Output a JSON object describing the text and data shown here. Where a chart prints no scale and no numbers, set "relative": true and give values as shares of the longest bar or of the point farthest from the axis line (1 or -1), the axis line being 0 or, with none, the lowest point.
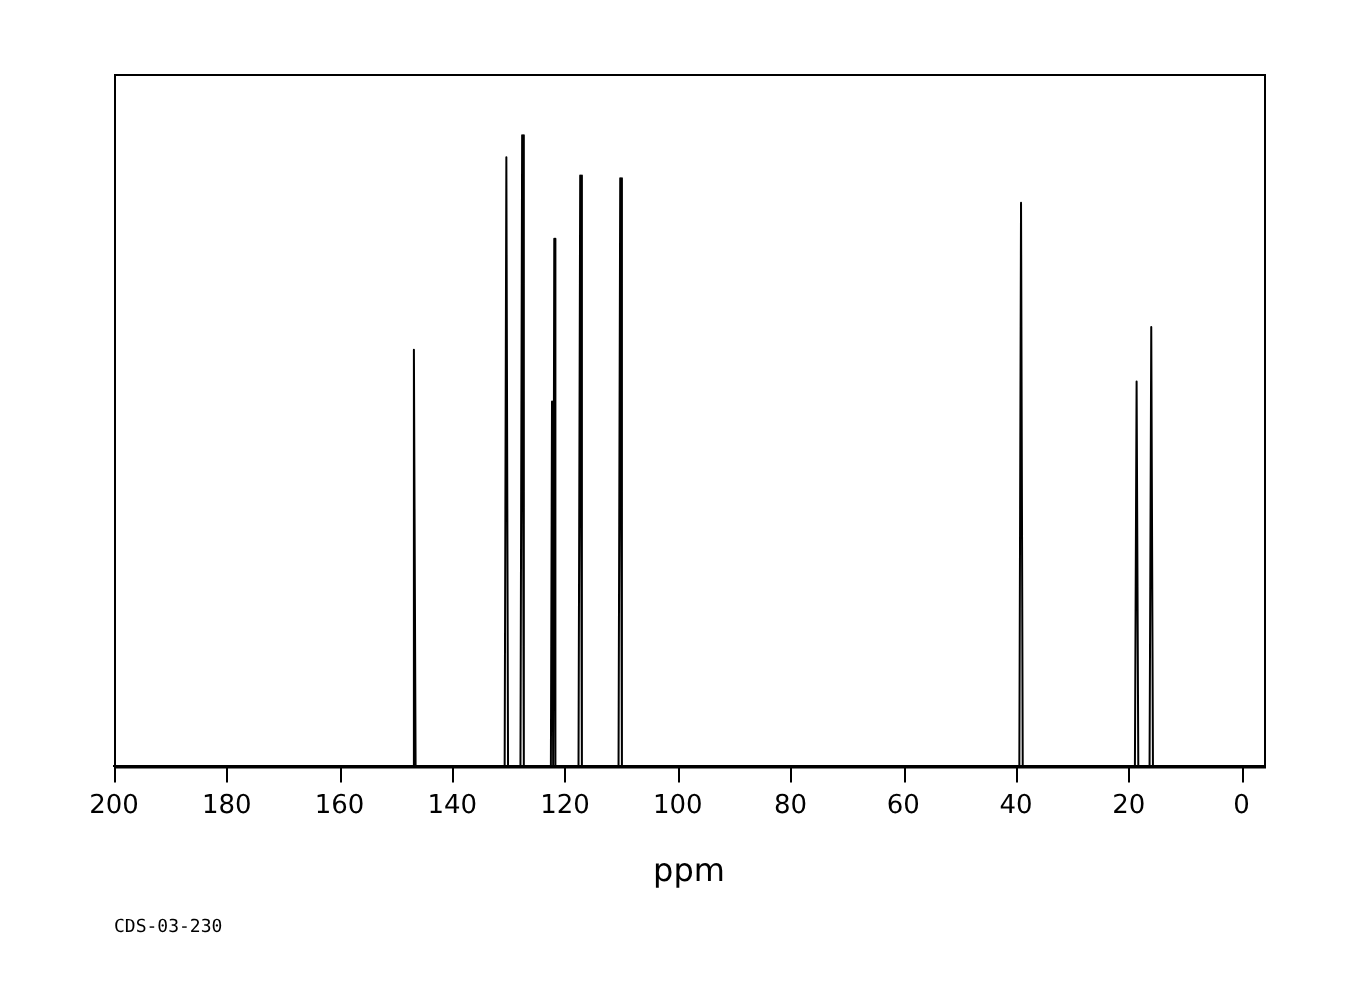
{
  "chart_data": {
    "type": "line",
    "relative": true,
    "xlabel": "ppm",
    "annotations": [
      "CDS-03-230"
    ],
    "xlim": [
      200,
      -4
    ],
    "xticks": [
      200,
      180,
      160,
      140,
      120,
      100,
      80,
      60,
      40,
      20,
      0
    ],
    "grid": false,
    "legend": false,
    "marker": "none",
    "line_style": "solid",
    "series": [
      {
        "color": "#000000",
        "x": [
          200,
          147.1,
          146.8,
          146.5,
          130.7,
          130.4,
          130.1,
          127.9,
          127.6,
          127.3,
          122.5,
          122.3,
          122.1,
          121.9,
          121.7,
          117.6,
          117.3,
          117.0,
          110.5,
          110.2,
          109.9,
          39.4,
          39.1,
          38.8,
          18.9,
          18.6,
          18.3,
          16.3,
          16.0,
          15.7,
          -4
        ],
        "values": [
          0,
          0,
          0.66,
          0,
          0,
          0.965,
          0,
          0,
          1,
          0,
          0,
          0.578,
          0,
          0.836,
          0,
          0,
          0.936,
          0,
          0,
          0.932,
          0,
          0,
          0.893,
          0,
          0,
          0.61,
          0,
          0,
          0.696,
          0,
          0
        ]
      }
    ]
  }
}
